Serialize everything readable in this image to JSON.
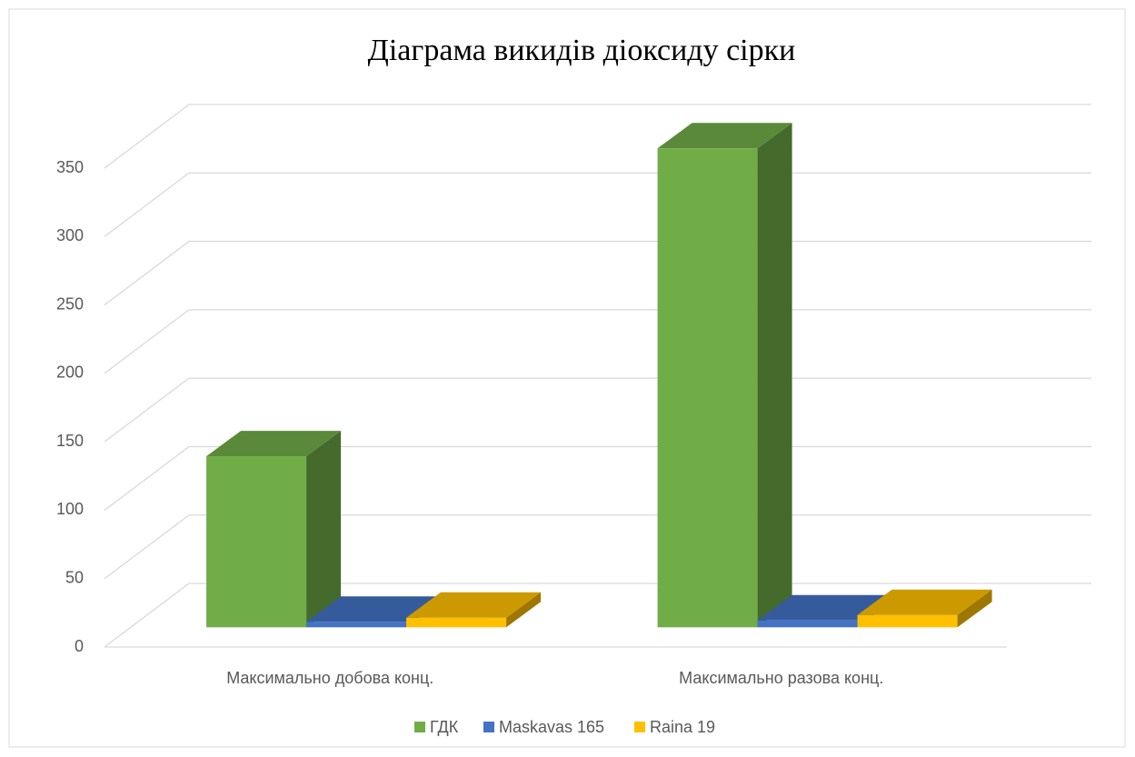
{
  "chart_data": {
    "type": "bar3d",
    "title": "Діаграма викидів діоксиду сірки",
    "categories": [
      "Максимально добова конц.",
      "Максимально разова конц."
    ],
    "series": [
      {
        "name": "ГДК",
        "color": "#70ad47",
        "values": [
          125,
          350
        ]
      },
      {
        "name": "Maskavas 165",
        "color": "#4472c4",
        "values": [
          4,
          5
        ]
      },
      {
        "name": "Raina 19",
        "color": "#ffc000",
        "values": [
          7,
          9
        ]
      }
    ],
    "ylim": [
      0,
      350
    ],
    "yticks": [
      0,
      50,
      100,
      150,
      200,
      250,
      300,
      350
    ],
    "grid": true,
    "legend": "bottom"
  }
}
